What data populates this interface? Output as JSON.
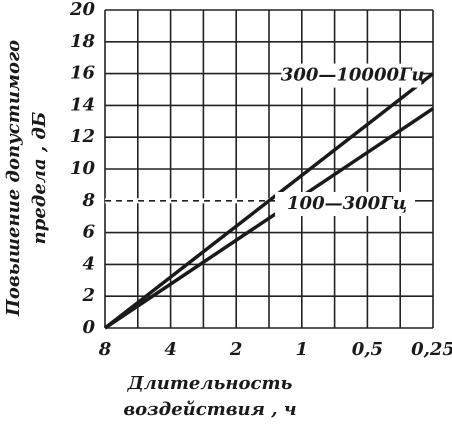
{
  "chart_data": {
    "type": "line",
    "x_label": [
      "Длительность",
      "воздействия , ч"
    ],
    "y_label": [
      "Повышение допустимого",
      "предела , дБ"
    ],
    "xlim": [
      8,
      0.25
    ],
    "x_scale": "log",
    "xticks": [
      8,
      4,
      2,
      1,
      {
        "value": 0.5,
        "label": "0,5"
      },
      {
        "value": 0.25,
        "label": "0,25"
      }
    ],
    "ylim": [
      0,
      20
    ],
    "yticks": [
      0,
      2,
      4,
      6,
      8,
      10,
      12,
      14,
      16,
      18,
      20
    ],
    "grid": true,
    "series": [
      {
        "name": "300—10000Гц",
        "color": "#1a1a1a",
        "x": [
          8,
          0.25
        ],
        "values": [
          0,
          16
        ]
      },
      {
        "name": "100—300Гц",
        "color": "#1a1a1a",
        "x": [
          8,
          0.25
        ],
        "values": [
          0,
          13.8
        ]
      }
    ],
    "reference": {
      "y": 8,
      "x": [
        8,
        1
      ],
      "style": "dashed"
    }
  }
}
